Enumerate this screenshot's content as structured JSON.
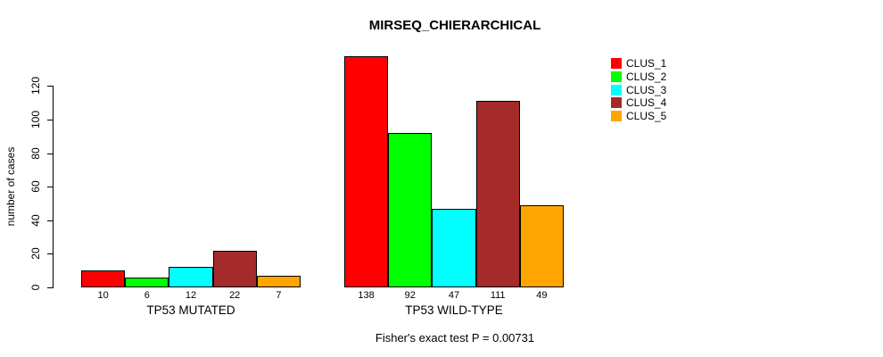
{
  "title": "MIRSEQ_CHIERARCHICAL",
  "footer": "Fisher's exact test P = 0.00731",
  "chart_data": {
    "type": "bar",
    "title": "MIRSEQ_CHIERARCHICAL",
    "ylabel": "number of cases",
    "xlabel": "",
    "groups": [
      "TP53 MUTATED",
      "TP53 WILD-TYPE"
    ],
    "series": [
      {
        "name": "CLUS_1",
        "color": "#FF0000",
        "values": [
          10,
          138
        ]
      },
      {
        "name": "CLUS_2",
        "color": "#00FF00",
        "values": [
          6,
          92
        ]
      },
      {
        "name": "CLUS_3",
        "color": "#00FFFF",
        "values": [
          12,
          47
        ]
      },
      {
        "name": "CLUS_4",
        "color": "#A52A2A",
        "values": [
          22,
          111
        ]
      },
      {
        "name": "CLUS_5",
        "color": "#FFA500",
        "values": [
          7,
          49
        ]
      }
    ],
    "bar_value_labels": true,
    "yticks": [
      0,
      20,
      40,
      60,
      80,
      100,
      120
    ],
    "ylim": [
      0,
      140
    ],
    "grid": false,
    "legend_position": "top-right",
    "legend_entries": [
      "CLUS_1",
      "CLUS_2",
      "CLUS_3",
      "CLUS_4",
      "CLUS_5"
    ],
    "annotation": "Fisher's exact test P = 0.00731"
  }
}
